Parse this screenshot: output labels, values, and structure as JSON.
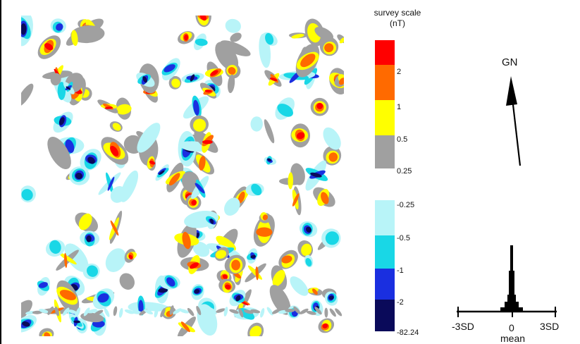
{
  "legend": {
    "title_line1": "survey scale",
    "title_line2": "(nT)",
    "classes": [
      {
        "label": "",
        "color": "#ff0000"
      },
      {
        "label": "2",
        "color": "#ff6a00"
      },
      {
        "label": "1",
        "color": "#ffff00"
      },
      {
        "label": "0.5",
        "color": "#a0a0a0"
      },
      {
        "label": "0.25",
        "color": "#ffffff"
      },
      {
        "label": "-0.25",
        "color": "#b8f4f8"
      },
      {
        "label": "-0.5",
        "color": "#19d7e6"
      },
      {
        "label": "-1",
        "color": "#1a2fe0"
      },
      {
        "label": "-2",
        "color": "#0a0a5a"
      },
      {
        "label": "-82.24",
        "color": "#0a0a5a"
      }
    ]
  },
  "north_arrow": {
    "label": "GN"
  },
  "histogram": {
    "left_label": "-3SD",
    "center_label": "0",
    "right_label": "3SD",
    "mean_label": "mean"
  },
  "colors": {
    "red": "#ff0000",
    "orange": "#ff6a00",
    "yellow": "#ffff00",
    "grey": "#a0a0a0",
    "light_cyan": "#b8f4f8",
    "cyan": "#19d7e6",
    "blue": "#1a2fe0",
    "navy": "#0a0a5a"
  }
}
